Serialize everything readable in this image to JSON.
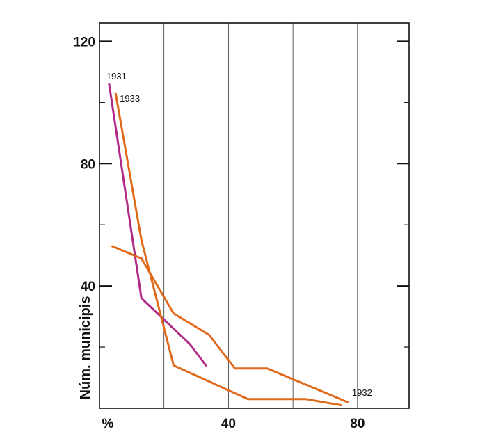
{
  "chart_data": {
    "type": "line",
    "xlabel": "%",
    "ylabel": "Núm. municipis",
    "xlim": [
      0,
      96
    ],
    "ylim": [
      0,
      126
    ],
    "x_ticks": [
      {
        "value": 40,
        "label": "40"
      },
      {
        "value": 80,
        "label": "80"
      }
    ],
    "y_ticks": [
      {
        "value": 40,
        "label": "40"
      },
      {
        "value": 80,
        "label": "80"
      },
      {
        "value": 120,
        "label": "120"
      }
    ],
    "grid": true,
    "series": [
      {
        "name": "1931",
        "color": "#b02a86",
        "x": [
          3,
          13,
          28,
          33
        ],
        "y": [
          106,
          36,
          21,
          14
        ]
      },
      {
        "name": "1933",
        "color": "#e06a1a",
        "x": [
          5,
          13,
          23,
          46,
          64,
          75
        ],
        "y": [
          103,
          55,
          14,
          3,
          3,
          1
        ]
      },
      {
        "name": "1932",
        "color": "#e06a1a",
        "x": [
          4,
          13,
          23,
          34,
          42,
          52,
          77
        ],
        "y": [
          53,
          49,
          31,
          24,
          13,
          13,
          2
        ]
      }
    ]
  }
}
